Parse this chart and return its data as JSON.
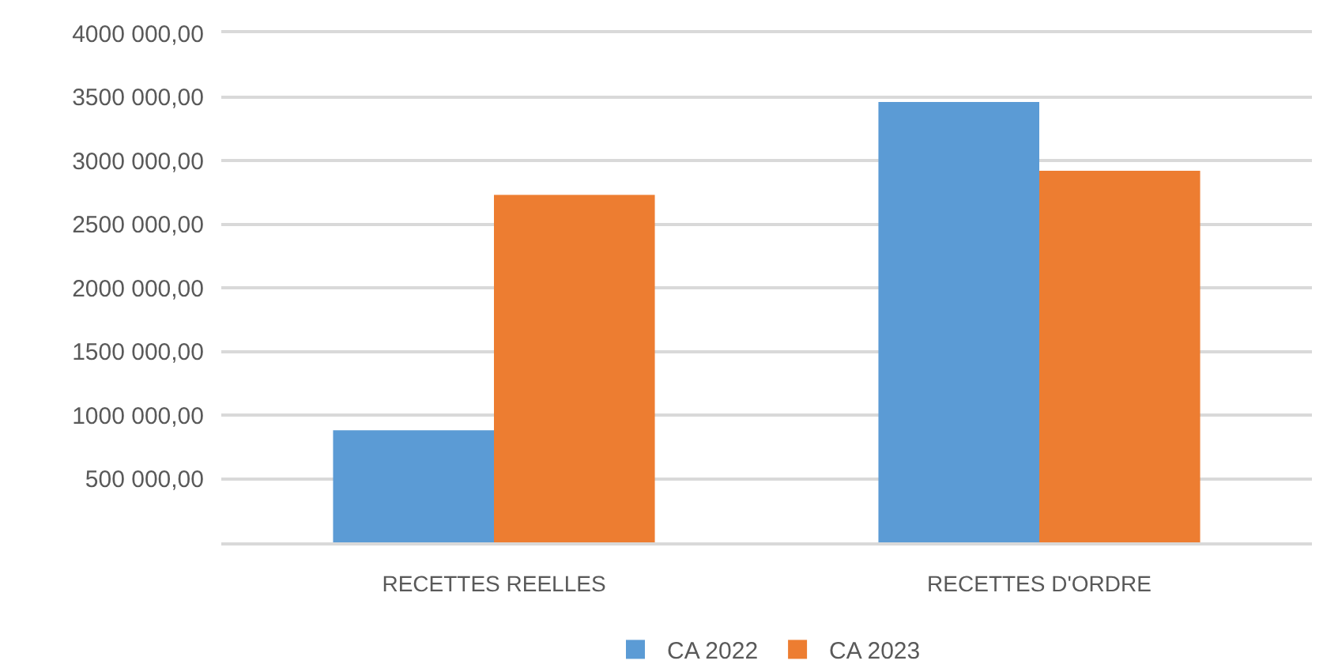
{
  "chart_data": {
    "type": "bar",
    "categories": [
      "RECETTES REELLES",
      "RECETTES D'ORDRE"
    ],
    "series": [
      {
        "name": "CA 2022",
        "color": "#5b9bd5",
        "values": [
          880000,
          3460000
        ]
      },
      {
        "name": "CA 2023",
        "color": "#ed7d31",
        "values": [
          2730000,
          2920000
        ]
      }
    ],
    "ylim": [
      0,
      4000000
    ],
    "yticks": [
      {
        "value": 500000,
        "label": "500 000,00"
      },
      {
        "value": 1000000,
        "label": "1000 000,00"
      },
      {
        "value": 1500000,
        "label": "1500 000,00"
      },
      {
        "value": 2000000,
        "label": "2000 000,00"
      },
      {
        "value": 2500000,
        "label": "2500 000,00"
      },
      {
        "value": 3000000,
        "label": "3000 000,00"
      },
      {
        "value": 3500000,
        "label": "3500 000,00"
      },
      {
        "value": 4000000,
        "label": "4000 000,00"
      }
    ],
    "grid": "y",
    "legend": "bottom"
  }
}
